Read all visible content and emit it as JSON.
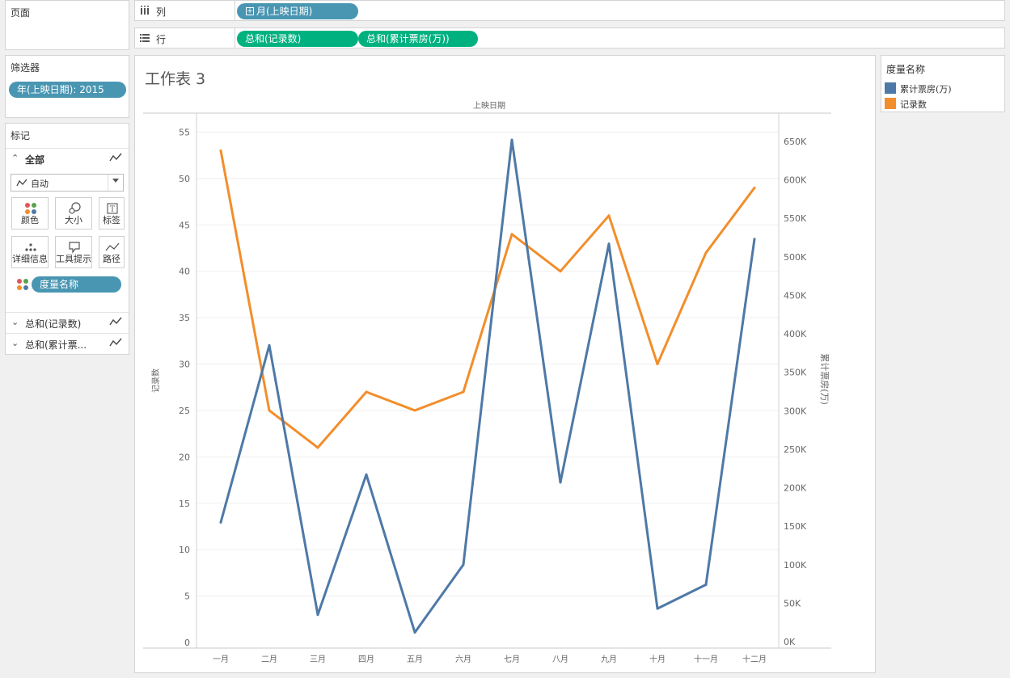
{
  "pages": {
    "title": "页面"
  },
  "filters": {
    "title": "筛选器",
    "pill": "年(上映日期): 2015"
  },
  "marks": {
    "title": "标记",
    "all_label": "全部",
    "mark_type": "自动",
    "buttons": {
      "color": "颜色",
      "size": "大小",
      "label": "标签",
      "detail": "详细信息",
      "tooltip": "工具提示",
      "path": "路径"
    },
    "color_pill": "度量名称",
    "sub_items": [
      "总和(记录数)",
      "总和(累计票..."
    ]
  },
  "columns": {
    "label": "列",
    "pill": "月(上映日期)"
  },
  "rows": {
    "label": "行",
    "pills": [
      "总和(记录数)",
      "总和(累计票房(万))"
    ]
  },
  "sheet": {
    "title": "工作表 3",
    "header": "上映日期"
  },
  "legend": {
    "title": "度量名称",
    "items": [
      {
        "name": "累计票房(万)",
        "color": "#4e79a7"
      },
      {
        "name": "记录数",
        "color": "#f28e2b"
      }
    ]
  },
  "chart_data": {
    "type": "line",
    "categories": [
      "一月",
      "二月",
      "三月",
      "四月",
      "五月",
      "六月",
      "七月",
      "八月",
      "九月",
      "十月",
      "十一月",
      "十二月"
    ],
    "series": [
      {
        "name": "记录数",
        "axis": "left",
        "color": "#f28e2b",
        "values": [
          53,
          25,
          21,
          27,
          25,
          27,
          44,
          40,
          46,
          30,
          42,
          49
        ]
      },
      {
        "name": "累计票房(万)",
        "axis": "right",
        "color": "#4e79a7",
        "values": [
          155000,
          385000,
          35000,
          217000,
          12000,
          100000,
          652000,
          207000,
          517000,
          43000,
          74000,
          523000
        ]
      }
    ],
    "ylabel": "记录数",
    "y2label": "累计票房(万)",
    "ylim": [
      0,
      56
    ],
    "y2lim": [
      -5000,
      676000
    ],
    "yticks": [
      "0",
      "5",
      "10",
      "15",
      "20",
      "25",
      "30",
      "35",
      "40",
      "45",
      "50",
      "55"
    ],
    "y2ticks": [
      "0K",
      "50K",
      "100K",
      "150K",
      "200K",
      "250K",
      "300K",
      "350K",
      "400K",
      "450K",
      "500K",
      "550K",
      "600K",
      "650K"
    ],
    "grid": true
  }
}
